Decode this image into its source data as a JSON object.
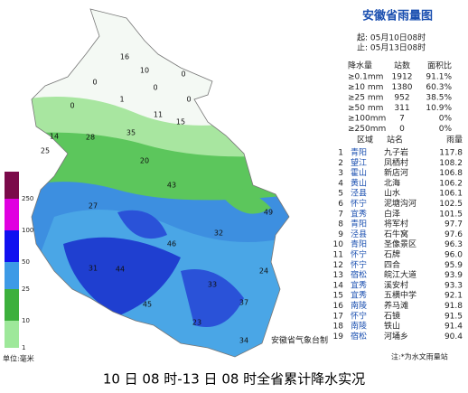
{
  "title": "安徽省雨量图",
  "period": {
    "start": "起: 05月10日08时",
    "end": "止: 05月13日08时"
  },
  "stats": {
    "header": [
      "降水量",
      "站数",
      "面积比"
    ],
    "rows": [
      [
        "≥0.1mm",
        "1912",
        "91.1%"
      ],
      [
        "≥10 mm",
        "1380",
        "60.3%"
      ],
      [
        "≥25 mm",
        "952",
        "38.5%"
      ],
      [
        "≥50 mm",
        "311",
        "10.9%"
      ],
      [
        "≥100mm",
        "7",
        "0%"
      ],
      [
        "≥250mm",
        "0",
        "0%"
      ]
    ]
  },
  "ranking": {
    "header": [
      "区域",
      "站名",
      "雨量"
    ],
    "rows": [
      [
        "1",
        "青阳",
        "九子岩",
        "117.8"
      ],
      [
        "2",
        "望江",
        "凤栖村",
        "108.2"
      ],
      [
        "3",
        "霍山",
        "新店河",
        "106.8"
      ],
      [
        "4",
        "黄山",
        "北海",
        "106.2"
      ],
      [
        "5",
        "泾县",
        "山水",
        "106.1"
      ],
      [
        "6",
        "怀宁",
        "泥塘沟河",
        "102.5"
      ],
      [
        "7",
        "宜秀",
        "白泽",
        "101.5"
      ],
      [
        "8",
        "青阳",
        "将军村",
        "97.7"
      ],
      [
        "9",
        "泾县",
        "石牛窝",
        "97.6"
      ],
      [
        "10",
        "青阳",
        "圣像景区",
        "96.3"
      ],
      [
        "11",
        "怀宁",
        "石牌",
        "96.0"
      ],
      [
        "12",
        "怀宁",
        "四合",
        "95.9"
      ],
      [
        "13",
        "宿松",
        "皖江大道",
        "93.9"
      ],
      [
        "14",
        "宜秀",
        "溪安村",
        "93.3"
      ],
      [
        "15",
        "宜秀",
        "五横中学",
        "92.1"
      ],
      [
        "16",
        "南陵",
        "养马滩",
        "91.8"
      ],
      [
        "17",
        "怀宁",
        "石镜",
        "91.5"
      ],
      [
        "18",
        "南陵",
        "铁山",
        "91.4"
      ],
      [
        "19",
        "宿松",
        "河埇乡",
        "90.4"
      ]
    ],
    "note": "注:*为水文雨量站"
  },
  "legend": {
    "labels": [
      "250",
      "100",
      "50",
      "25",
      "10",
      "1"
    ],
    "unit": "单位:毫米"
  },
  "map_labels": [
    "16",
    "10",
    "0",
    "0",
    "0",
    "1",
    "0",
    "0",
    "14",
    "25",
    "11",
    "15",
    "35",
    "28",
    "20",
    "43",
    "49",
    "27",
    "32",
    "46",
    "31",
    "44",
    "24",
    "45",
    "23",
    "34",
    "37",
    "33"
  ],
  "credit": "安徽省气象台制",
  "caption": "10 日 08 时-13 日 08 时全省累计降水实况"
}
